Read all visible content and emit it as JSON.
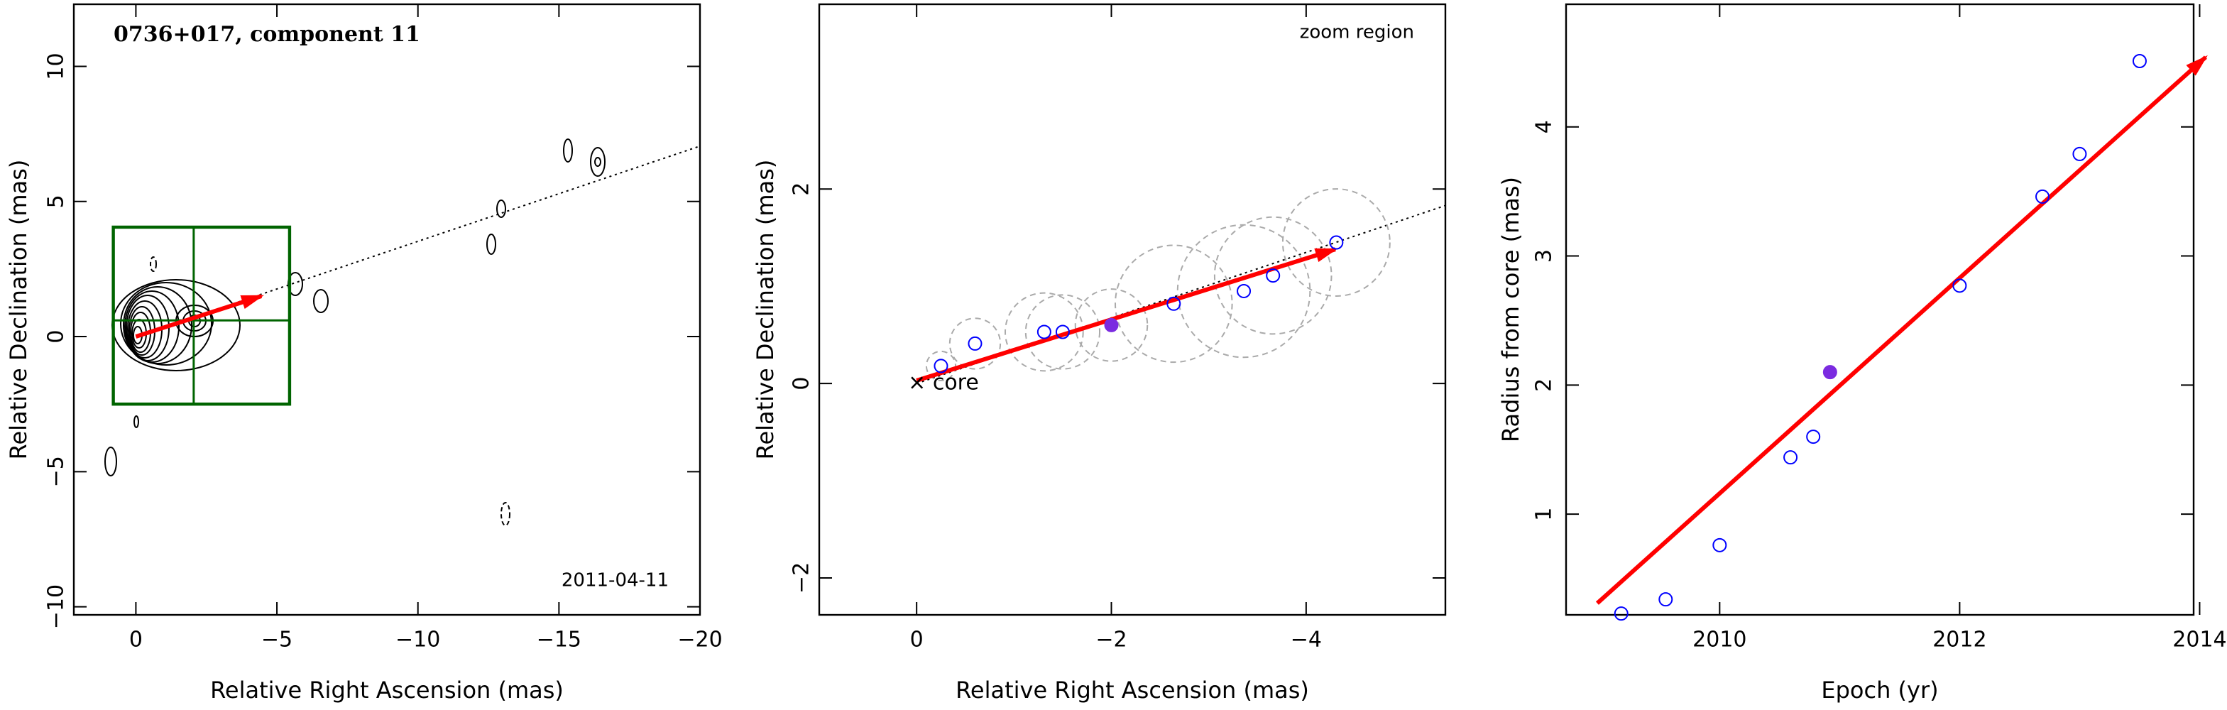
{
  "chart_data": [
    {
      "type": "contour",
      "title": "0736+017, component 11",
      "annotation": "2011-04-11",
      "xlabel": "Relative Right Ascension (mas)",
      "ylabel": "Relative Declination (mas)",
      "xlim": [
        2.2,
        -20
      ],
      "ylim": [
        -10.3,
        12.3
      ],
      "xticks": [
        0,
        {
          "value": -5,
          "label": "−5"
        },
        {
          "value": -10,
          "label": "−10"
        },
        {
          "value": -15,
          "label": "−15"
        },
        {
          "value": -20,
          "label": "−20"
        }
      ],
      "yticks": [
        {
          "value": -10,
          "label": "−10"
        },
        {
          "value": -5,
          "label": "−5"
        },
        0,
        5,
        10
      ],
      "arrow": {
        "x": [
          0,
          -4.45
        ],
        "y": [
          0,
          1.5
        ],
        "color": "#ff0000"
      },
      "line": {
        "x": [
          0,
          -20
        ],
        "y": [
          0,
          7.05
        ]
      },
      "box": {
        "x": [
          0.8,
          -5.45
        ],
        "y": [
          -2.5,
          4.05
        ],
        "cross": [
          -2.05,
          0.6
        ],
        "color": "#006400"
      }
    },
    {
      "type": "scatter",
      "annotation": "zoom region",
      "core_label": "× core",
      "xlabel": "Relative Right Ascension (mas)",
      "ylabel": "Relative Declination (mas)",
      "xlim": [
        1.0,
        -5.43
      ],
      "ylim": [
        -2.38,
        3.9
      ],
      "xticks": [
        0,
        {
          "value": -2,
          "label": "−2"
        },
        {
          "value": -4,
          "label": "−4"
        }
      ],
      "yticks": [
        {
          "value": -2,
          "label": "−2"
        },
        0,
        2
      ],
      "series": [
        {
          "color": "#0000ff",
          "filled": false,
          "x": [
            -0.25,
            -0.6,
            -1.31,
            -1.5,
            -2.64,
            -3.36,
            -3.66,
            -4.31
          ],
          "values": [
            0.18,
            0.41,
            0.53,
            0.53,
            0.82,
            0.95,
            1.11,
            1.45
          ],
          "sizes": [
            0.15,
            0.26,
            0.4,
            0.38,
            0.6,
            0.68,
            0.6,
            0.55
          ]
        },
        {
          "color": "#7b2be0",
          "filled": true,
          "x": [
            -2.0
          ],
          "values": [
            0.6
          ],
          "sizes": [
            0.37
          ]
        }
      ],
      "arrow": {
        "x": [
          0,
          -4.3
        ],
        "y": [
          0.03,
          1.38
        ],
        "color": "#ff0000"
      },
      "line": {
        "x": [
          0,
          -5.43
        ],
        "y": [
          0,
          1.83
        ]
      }
    },
    {
      "type": "scatter",
      "xlabel": "Epoch (yr)",
      "ylabel": "Radius from core (mas)",
      "xlim": [
        2008.72,
        2013.95
      ],
      "ylim": [
        0.22,
        4.95
      ],
      "xticks": [
        2010,
        2012,
        2014
      ],
      "yticks": [
        1,
        2,
        3,
        4
      ],
      "series": [
        {
          "color": "#0000ff",
          "filled": false,
          "x": [
            2009.18,
            2009.55,
            2010.0,
            2010.59,
            2010.78,
            2012.0,
            2012.69,
            2013.0,
            2013.5
          ],
          "values": [
            0.23,
            0.34,
            0.76,
            1.44,
            1.6,
            2.77,
            3.46,
            3.79,
            4.51
          ]
        },
        {
          "color": "#7b2be0",
          "filled": true,
          "x": [
            2010.92
          ],
          "values": [
            2.1
          ]
        }
      ],
      "arrow": {
        "x": [
          2008.98,
          2014.05
        ],
        "y": [
          0.31,
          4.54
        ],
        "color": "#ff0000"
      }
    }
  ]
}
